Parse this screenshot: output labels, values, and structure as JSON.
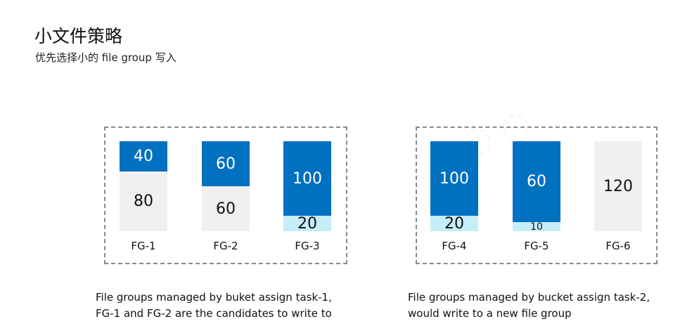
{
  "title": "小文件策略",
  "subtitle": "优先选择小的 file group 写入",
  "colors": {
    "used": "#0070c0",
    "small": "#c6eefa",
    "free": "#f0f0f0"
  },
  "groups": [
    {
      "caption_line1": "File groups managed by buket assign task-1,",
      "caption_line2": "FG-1 and FG-2 are the candidates to write to",
      "file_groups": [
        {
          "name": "FG-1",
          "top_blue": "40",
          "gray": "80",
          "bottom_light": ""
        },
        {
          "name": "FG-2",
          "top_blue": "60",
          "gray": "60",
          "bottom_light": ""
        },
        {
          "name": "FG-3",
          "top_blue": "100",
          "gray": "",
          "bottom_light": "20"
        }
      ]
    },
    {
      "caption_line1": "File groups managed by bucket assign task-2,",
      "caption_line2": "would write to a new file group",
      "file_groups": [
        {
          "name": "FG-4",
          "top_blue": "100",
          "gray": "",
          "bottom_light": "20"
        },
        {
          "name": "FG-5",
          "top_blue": "60",
          "gray": "",
          "bottom_light": "10"
        },
        {
          "name": "FG-6",
          "top_blue": "",
          "gray": "120",
          "bottom_light": ""
        }
      ]
    }
  ]
}
